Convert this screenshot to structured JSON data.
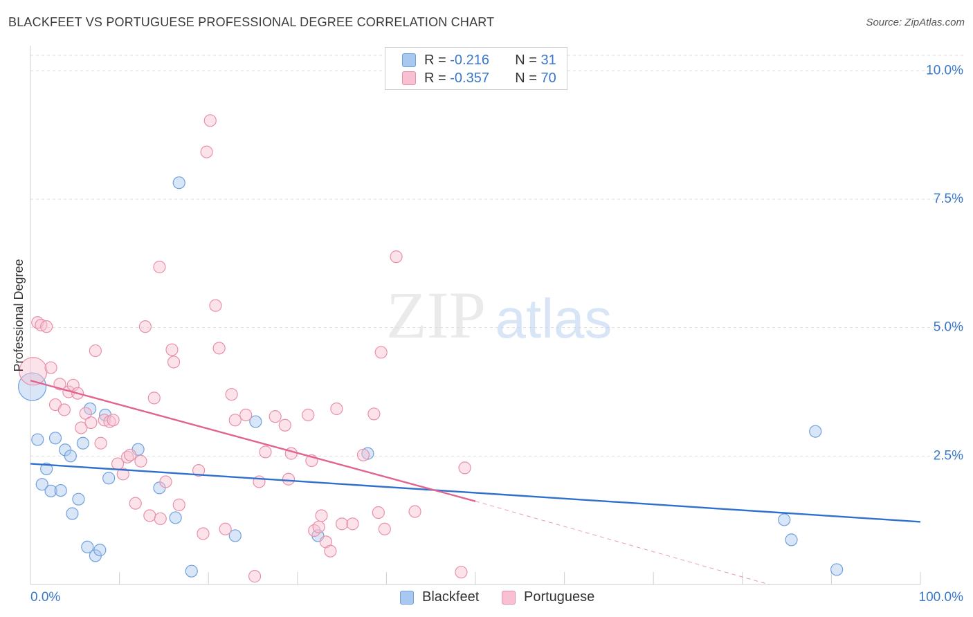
{
  "title": "BLACKFEET VS PORTUGUESE PROFESSIONAL DEGREE CORRELATION CHART",
  "source": "Source: ZipAtlas.com",
  "watermark": {
    "zip": "ZIP",
    "atlas": "atlas"
  },
  "legend": {
    "rows": [
      {
        "r_label": "R =",
        "r_value": "-0.216",
        "n_label": "N =",
        "n_value": "31",
        "color": "#a8c8f0",
        "border": "#6fa0dc"
      },
      {
        "r_label": "R =",
        "r_value": "-0.357",
        "n_label": "N =",
        "n_value": "70",
        "color": "#f8c0d0",
        "border": "#e890aa"
      }
    ]
  },
  "bottom_legend": [
    {
      "label": "Blackfeet",
      "color": "#a8c8f0",
      "border": "#6fa0dc"
    },
    {
      "label": "Portuguese",
      "color": "#f8c0d0",
      "border": "#e890aa"
    }
  ],
  "colors": {
    "blackfeet_fill": "rgba(168,200,240,0.45)",
    "blackfeet_stroke": "#6fa0dc",
    "blackfeet_line": "#2f6fce",
    "portuguese_fill": "rgba(248,192,208,0.45)",
    "portuguese_stroke": "#e890aa",
    "portuguese_line": "#e0648f",
    "grid": "#dedede",
    "tick_label": "#3a78c9"
  },
  "chart_data": {
    "type": "scatter",
    "title": "BLACKFEET VS PORTUGUESE PROFESSIONAL DEGREE CORRELATION CHART",
    "xlabel": "",
    "ylabel": "Professional Degree",
    "xlim": [
      0,
      100
    ],
    "ylim": [
      0,
      10.3
    ],
    "x_tick_labels": [
      "0.0%",
      "100.0%"
    ],
    "y_ticks": [
      2.5,
      5.0,
      7.5,
      10.0
    ],
    "y_tick_labels": [
      "2.5%",
      "5.0%",
      "7.5%",
      "10.0%"
    ],
    "grid": true,
    "series": [
      {
        "name": "Blackfeet",
        "trend": {
          "x": [
            0,
            100
          ],
          "y": [
            2.35,
            1.22
          ],
          "dashed_from": null
        },
        "points": [
          {
            "x": 0.2,
            "y": 3.85,
            "big": true
          },
          {
            "x": 0.8,
            "y": 2.82
          },
          {
            "x": 1.3,
            "y": 1.95
          },
          {
            "x": 1.8,
            "y": 2.25
          },
          {
            "x": 2.3,
            "y": 1.82
          },
          {
            "x": 2.8,
            "y": 2.85
          },
          {
            "x": 3.4,
            "y": 1.83
          },
          {
            "x": 3.9,
            "y": 2.62
          },
          {
            "x": 4.5,
            "y": 2.5
          },
          {
            "x": 4.7,
            "y": 1.38
          },
          {
            "x": 5.4,
            "y": 1.66
          },
          {
            "x": 5.9,
            "y": 2.75
          },
          {
            "x": 6.4,
            "y": 0.73
          },
          {
            "x": 6.7,
            "y": 3.42
          },
          {
            "x": 7.3,
            "y": 0.56
          },
          {
            "x": 7.8,
            "y": 0.67
          },
          {
            "x": 8.4,
            "y": 3.3
          },
          {
            "x": 8.8,
            "y": 2.07
          },
          {
            "x": 12.1,
            "y": 2.63
          },
          {
            "x": 14.5,
            "y": 1.88
          },
          {
            "x": 16.3,
            "y": 1.3
          },
          {
            "x": 16.7,
            "y": 7.82
          },
          {
            "x": 18.1,
            "y": 0.26
          },
          {
            "x": 23.0,
            "y": 0.95
          },
          {
            "x": 25.3,
            "y": 3.17
          },
          {
            "x": 32.3,
            "y": 0.95
          },
          {
            "x": 37.9,
            "y": 2.55
          },
          {
            "x": 84.7,
            "y": 1.26
          },
          {
            "x": 85.5,
            "y": 0.87
          },
          {
            "x": 88.2,
            "y": 2.98
          },
          {
            "x": 90.6,
            "y": 0.29
          }
        ]
      },
      {
        "name": "Portuguese",
        "trend": {
          "x": [
            0,
            50,
            83
          ],
          "y": [
            3.97,
            1.62,
            0.0
          ],
          "dashed_from": 50
        },
        "points": [
          {
            "x": 0.3,
            "y": 4.15,
            "big": true
          },
          {
            "x": 0.8,
            "y": 5.1
          },
          {
            "x": 1.2,
            "y": 5.05
          },
          {
            "x": 1.8,
            "y": 5.02
          },
          {
            "x": 2.3,
            "y": 4.22
          },
          {
            "x": 2.8,
            "y": 3.5
          },
          {
            "x": 3.3,
            "y": 3.9
          },
          {
            "x": 3.8,
            "y": 3.4
          },
          {
            "x": 4.3,
            "y": 3.75
          },
          {
            "x": 4.8,
            "y": 3.88
          },
          {
            "x": 5.3,
            "y": 3.72
          },
          {
            "x": 5.7,
            "y": 3.05
          },
          {
            "x": 6.2,
            "y": 3.33
          },
          {
            "x": 6.8,
            "y": 3.15
          },
          {
            "x": 7.3,
            "y": 4.55
          },
          {
            "x": 7.9,
            "y": 2.75
          },
          {
            "x": 8.3,
            "y": 3.2
          },
          {
            "x": 8.9,
            "y": 3.17
          },
          {
            "x": 9.3,
            "y": 3.2
          },
          {
            "x": 9.8,
            "y": 2.35
          },
          {
            "x": 10.4,
            "y": 2.15
          },
          {
            "x": 10.9,
            "y": 2.48
          },
          {
            "x": 11.2,
            "y": 2.52
          },
          {
            "x": 11.8,
            "y": 1.58
          },
          {
            "x": 12.4,
            "y": 2.4
          },
          {
            "x": 12.9,
            "y": 5.02
          },
          {
            "x": 13.4,
            "y": 1.34
          },
          {
            "x": 13.9,
            "y": 3.63
          },
          {
            "x": 14.5,
            "y": 6.18
          },
          {
            "x": 14.6,
            "y": 1.28
          },
          {
            "x": 15.2,
            "y": 2.0
          },
          {
            "x": 15.9,
            "y": 4.57
          },
          {
            "x": 16.1,
            "y": 4.33
          },
          {
            "x": 16.7,
            "y": 1.55
          },
          {
            "x": 18.9,
            "y": 2.22
          },
          {
            "x": 19.4,
            "y": 0.99
          },
          {
            "x": 19.8,
            "y": 8.42
          },
          {
            "x": 20.2,
            "y": 9.03
          },
          {
            "x": 20.8,
            "y": 5.43
          },
          {
            "x": 21.2,
            "y": 4.6
          },
          {
            "x": 21.9,
            "y": 1.08
          },
          {
            "x": 22.6,
            "y": 3.7
          },
          {
            "x": 23.0,
            "y": 3.2
          },
          {
            "x": 24.2,
            "y": 3.3
          },
          {
            "x": 25.2,
            "y": 0.16
          },
          {
            "x": 25.7,
            "y": 2.0
          },
          {
            "x": 26.4,
            "y": 2.58
          },
          {
            "x": 27.5,
            "y": 3.27
          },
          {
            "x": 28.6,
            "y": 3.1
          },
          {
            "x": 29.0,
            "y": 2.05
          },
          {
            "x": 29.3,
            "y": 2.55
          },
          {
            "x": 31.2,
            "y": 3.3
          },
          {
            "x": 31.6,
            "y": 2.41
          },
          {
            "x": 31.9,
            "y": 1.05
          },
          {
            "x": 32.4,
            "y": 1.12
          },
          {
            "x": 32.7,
            "y": 1.34
          },
          {
            "x": 33.2,
            "y": 0.83
          },
          {
            "x": 33.7,
            "y": 0.65
          },
          {
            "x": 34.4,
            "y": 3.42
          },
          {
            "x": 35.0,
            "y": 1.18
          },
          {
            "x": 36.2,
            "y": 1.18
          },
          {
            "x": 37.4,
            "y": 2.52
          },
          {
            "x": 38.6,
            "y": 3.32
          },
          {
            "x": 39.1,
            "y": 1.4
          },
          {
            "x": 39.4,
            "y": 4.52
          },
          {
            "x": 39.8,
            "y": 1.08
          },
          {
            "x": 41.1,
            "y": 6.38
          },
          {
            "x": 43.2,
            "y": 1.42
          },
          {
            "x": 48.4,
            "y": 0.24
          },
          {
            "x": 48.8,
            "y": 2.27
          }
        ]
      }
    ]
  }
}
